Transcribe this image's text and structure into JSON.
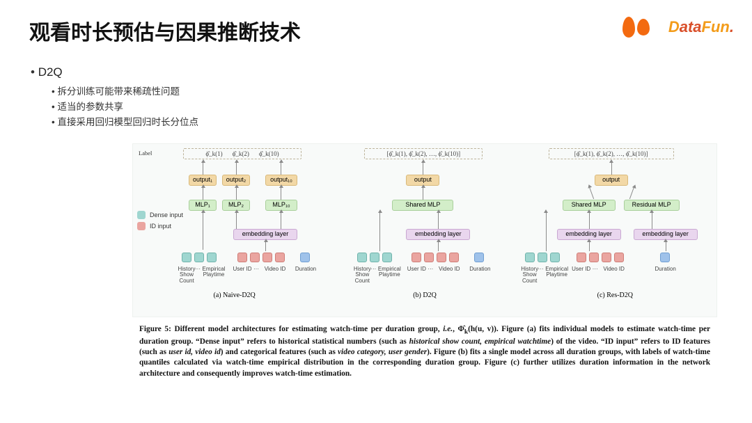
{
  "header": {
    "title": "观看时长预估与因果推断技术",
    "logo_datafun_pre": "D",
    "logo_datafun_mid": "ata",
    "logo_datafun_post": "Fun",
    "logo_datafun_dot": "."
  },
  "bullets": {
    "top": "D2Q",
    "items": [
      "拆分训练可能带来稀疏性问题",
      "适当的参数共享",
      "直接采用回归模型回归时长分位点"
    ]
  },
  "figure": {
    "label_word": "Label",
    "legend_dense": "Dense input",
    "legend_id": "ID input",
    "panels": {
      "a": {
        "labels": [
          "ϕ̂_k(1)",
          "ϕ̂_k(2)",
          "ϕ̂_k(10)"
        ],
        "outputs": [
          "output₁",
          "output₂",
          "output₁₀"
        ],
        "mlps": [
          "MLP₁",
          "MLP₂",
          "MLP₁₀"
        ],
        "embed": "embedding layer",
        "inputs_dense": [
          "History\nShow\nCount",
          "···",
          "Empirical\nPlaytime"
        ],
        "inputs_id": [
          "User ID",
          "···",
          "Video ID"
        ],
        "duration": "Duration",
        "caption": "(a) Naive-D2Q"
      },
      "b": {
        "label_vec": "[ϕ̂_k(1), ϕ̂_k(2), …, ϕ̂_k(10)]",
        "output": "output",
        "mlp": "Shared MLP",
        "embed": "embedding layer",
        "inputs_dense": [
          "History\nShow\nCount",
          "···",
          "Empirical\nPlaytime"
        ],
        "inputs_id": [
          "User ID",
          "···",
          "Video ID"
        ],
        "duration": "Duration",
        "caption": "(b) D2Q"
      },
      "c": {
        "label_vec": "[ϕ̂_k(1), ϕ̂_k(2), …, ϕ̂_k(10)]",
        "output": "output",
        "mlps": [
          "Shared MLP",
          "Residual MLP"
        ],
        "embeds": [
          "embedding layer",
          "embedding layer"
        ],
        "inputs_dense": [
          "History\nShow\nCount",
          "···",
          "Empirical\nPlaytime"
        ],
        "inputs_id": [
          "User ID",
          "···",
          "Video ID"
        ],
        "duration": "Duration",
        "caption": "(c) Res-D2Q"
      }
    },
    "colors": {
      "output_bg": "#f2d8a6",
      "mlp_bg": "#d3eec9",
      "embed_bg": "#e9d6ee",
      "dense_bg": "#9fd6d0",
      "id_bg": "#eaa5a0",
      "duration_bg": "#9fc2ea",
      "panel_bg": "#f8faf9"
    },
    "caption_html": "Figure 5: Different model architectures for estimating watch-time per duration group, <i>i.e.</i>, Φ̂<sub>k</sub>(h(u, v)). Figure (a) fits individual models to estimate watch-time per duration group. “Dense input” refers to historical statistical numbers (such as <i>historical show count, empirical watchtime</i>) of the video. “ID input” refers to ID features (such as <i>user id, video id</i>) and categorical features (such as <i>video category, user gender</i>). Figure (b) fits a single model across all duration groups, with labels of watch-time quantiles calculated via watch-time empirical distribution in the corresponding duration group. Figure (c) further utilizes duration information in the network architecture and consequently improves watch-time estimation."
  }
}
